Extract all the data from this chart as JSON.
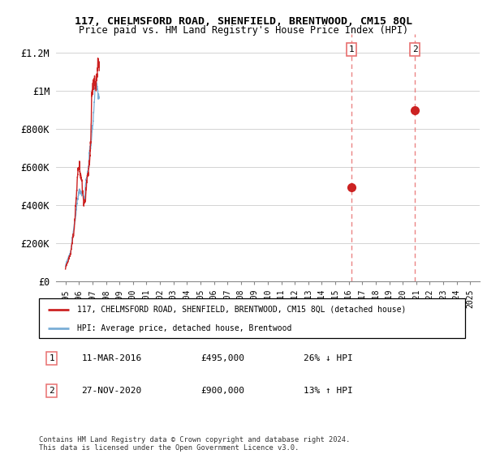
{
  "title": "117, CHELMSFORD ROAD, SHENFIELD, BRENTWOOD, CM15 8QL",
  "subtitle": "Price paid vs. HM Land Registry's House Price Index (HPI)",
  "ylabel_ticks": [
    "£0",
    "£200K",
    "£400K",
    "£600K",
    "£800K",
    "£1M",
    "£1.2M"
  ],
  "ytick_values": [
    0,
    200000,
    400000,
    600000,
    800000,
    1000000,
    1200000
  ],
  "ylim": [
    0,
    1300000
  ],
  "hpi_color": "#7aaed6",
  "price_color": "#cc2222",
  "dashed_color": "#e87070",
  "transaction1_year": 2016.2,
  "transaction1_price": 495000,
  "transaction1_pct": "26% ↓ HPI",
  "transaction1_date": "11-MAR-2016",
  "transaction2_year": 2020.9,
  "transaction2_price": 900000,
  "transaction2_pct": "13% ↑ HPI",
  "transaction2_date": "27-NOV-2020",
  "legend_property": "117, CHELMSFORD ROAD, SHENFIELD, BRENTWOOD, CM15 8QL (detached house)",
  "legend_hpi": "HPI: Average price, detached house, Brentwood",
  "footnote": "Contains HM Land Registry data © Crown copyright and database right 2024.\nThis data is licensed under the Open Government Licence v3.0.",
  "xlim_left": 1994.3,
  "xlim_right": 2025.7
}
